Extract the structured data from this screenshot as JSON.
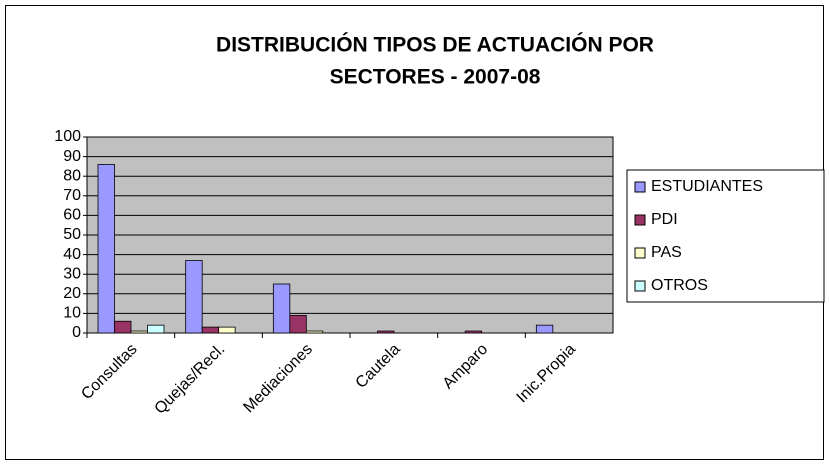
{
  "chart_data": {
    "type": "bar",
    "title": [
      "DISTRIBUCIÓN TIPOS DE ACTUACIÓN POR",
      "SECTORES - 2007-08"
    ],
    "categories": [
      "Consultas",
      "Quejas/Recl.",
      "Mediaciones",
      "Cautela",
      "Amparo",
      "Inic.Propia"
    ],
    "series": [
      {
        "name": "ESTUDIANTES",
        "color": "#9999ff",
        "values": [
          86,
          37,
          25,
          0,
          0,
          4
        ]
      },
      {
        "name": "PDI",
        "color": "#993366",
        "values": [
          6,
          3,
          9,
          1,
          1,
          0
        ]
      },
      {
        "name": "PAS",
        "color": "#ffffcc",
        "values": [
          1,
          3,
          1,
          0,
          0,
          0
        ]
      },
      {
        "name": "OTROS",
        "color": "#ccffff",
        "values": [
          4,
          0,
          0,
          0,
          0,
          0
        ]
      }
    ],
    "ylim": [
      0,
      100
    ],
    "yticks": [
      0,
      10,
      20,
      30,
      40,
      50,
      60,
      70,
      80,
      90,
      100
    ],
    "grid": true,
    "legend": "right"
  }
}
